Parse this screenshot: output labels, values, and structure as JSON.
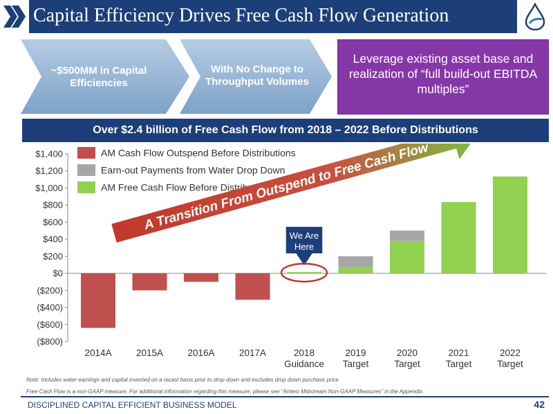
{
  "header": {
    "title": "Capital Efficiency Drives Free Cash Flow Generation"
  },
  "callouts": {
    "efficiency": "~$500MM in Capital Efficiencies",
    "throughput": "With No Change to Throughput Volumes",
    "leverage": "Leverage existing asset base and realization of “full build-out EBITDA multiples”"
  },
  "banner": {
    "text": "Over $2.4 billion of Free Cash Flow from 2018 – 2022 Before Distributions"
  },
  "colors": {
    "navy": "#1c3f7a",
    "outspend": "#c0504d",
    "earnout": "#a6a6a6",
    "fcf": "#92d050",
    "purple": "#8537a8"
  },
  "chart_data": {
    "type": "bar",
    "stacked": true,
    "categories": [
      "2014A",
      "2015A",
      "2016A",
      "2017A",
      "2018 Guidance",
      "2019 Target",
      "2020 Target",
      "2021 Target",
      "2022 Target"
    ],
    "category_lines": [
      [
        "2014A"
      ],
      [
        "2015A"
      ],
      [
        "2016A"
      ],
      [
        "2017A"
      ],
      [
        "2018",
        "Guidance"
      ],
      [
        "2019",
        "Target"
      ],
      [
        "2020",
        "Target"
      ],
      [
        "2021",
        "Target"
      ],
      [
        "2022",
        "Target"
      ]
    ],
    "series": [
      {
        "name": "AM Cash Flow Outspend Before Distributions",
        "color": "#c0504d",
        "values": [
          -640,
          -200,
          -100,
          -310,
          0,
          0,
          0,
          0,
          0
        ]
      },
      {
        "name": "AM Free Cash Flow Before Distributions",
        "color": "#92d050",
        "values": [
          0,
          0,
          0,
          0,
          15,
          75,
          375,
          835,
          1135
        ]
      },
      {
        "name": "Earn-out Payments from Water Drop Down",
        "color": "#a6a6a6",
        "values": [
          0,
          0,
          0,
          0,
          0,
          125,
          125,
          0,
          0
        ]
      }
    ],
    "legend": [
      "AM Cash Flow Outspend Before Distributions",
      "Earn-out Payments from Water Drop Down",
      "AM Free Cash Flow Before Distributions"
    ],
    "yticks": [
      "$1,400",
      "$1,200",
      "$1,000",
      "$800",
      "$600",
      "$400",
      "$200",
      "$0",
      "($200)",
      "($400)",
      "($600)",
      "($800)"
    ],
    "ylim": [
      -800,
      1400
    ],
    "legend_position": "top-left",
    "annotations": {
      "transition": "A Transition From Outspend to Free Cash Flow",
      "marker": "We Are Here"
    }
  },
  "notes": {
    "note1": "Note: Includes water earnings and capital invested on a recast basis prior to drop down and excludes drop down purchase price",
    "note2": "Free Cash Flow is a non-GAAP measure.  For additional information regarding this measure, please see “Antero Midstream Non-GAAP Measures” in the Appendix."
  },
  "footer": {
    "text": "DISCIPLINED CAPITAL EFFICIENT BUSINESS MODEL",
    "page": "42"
  }
}
